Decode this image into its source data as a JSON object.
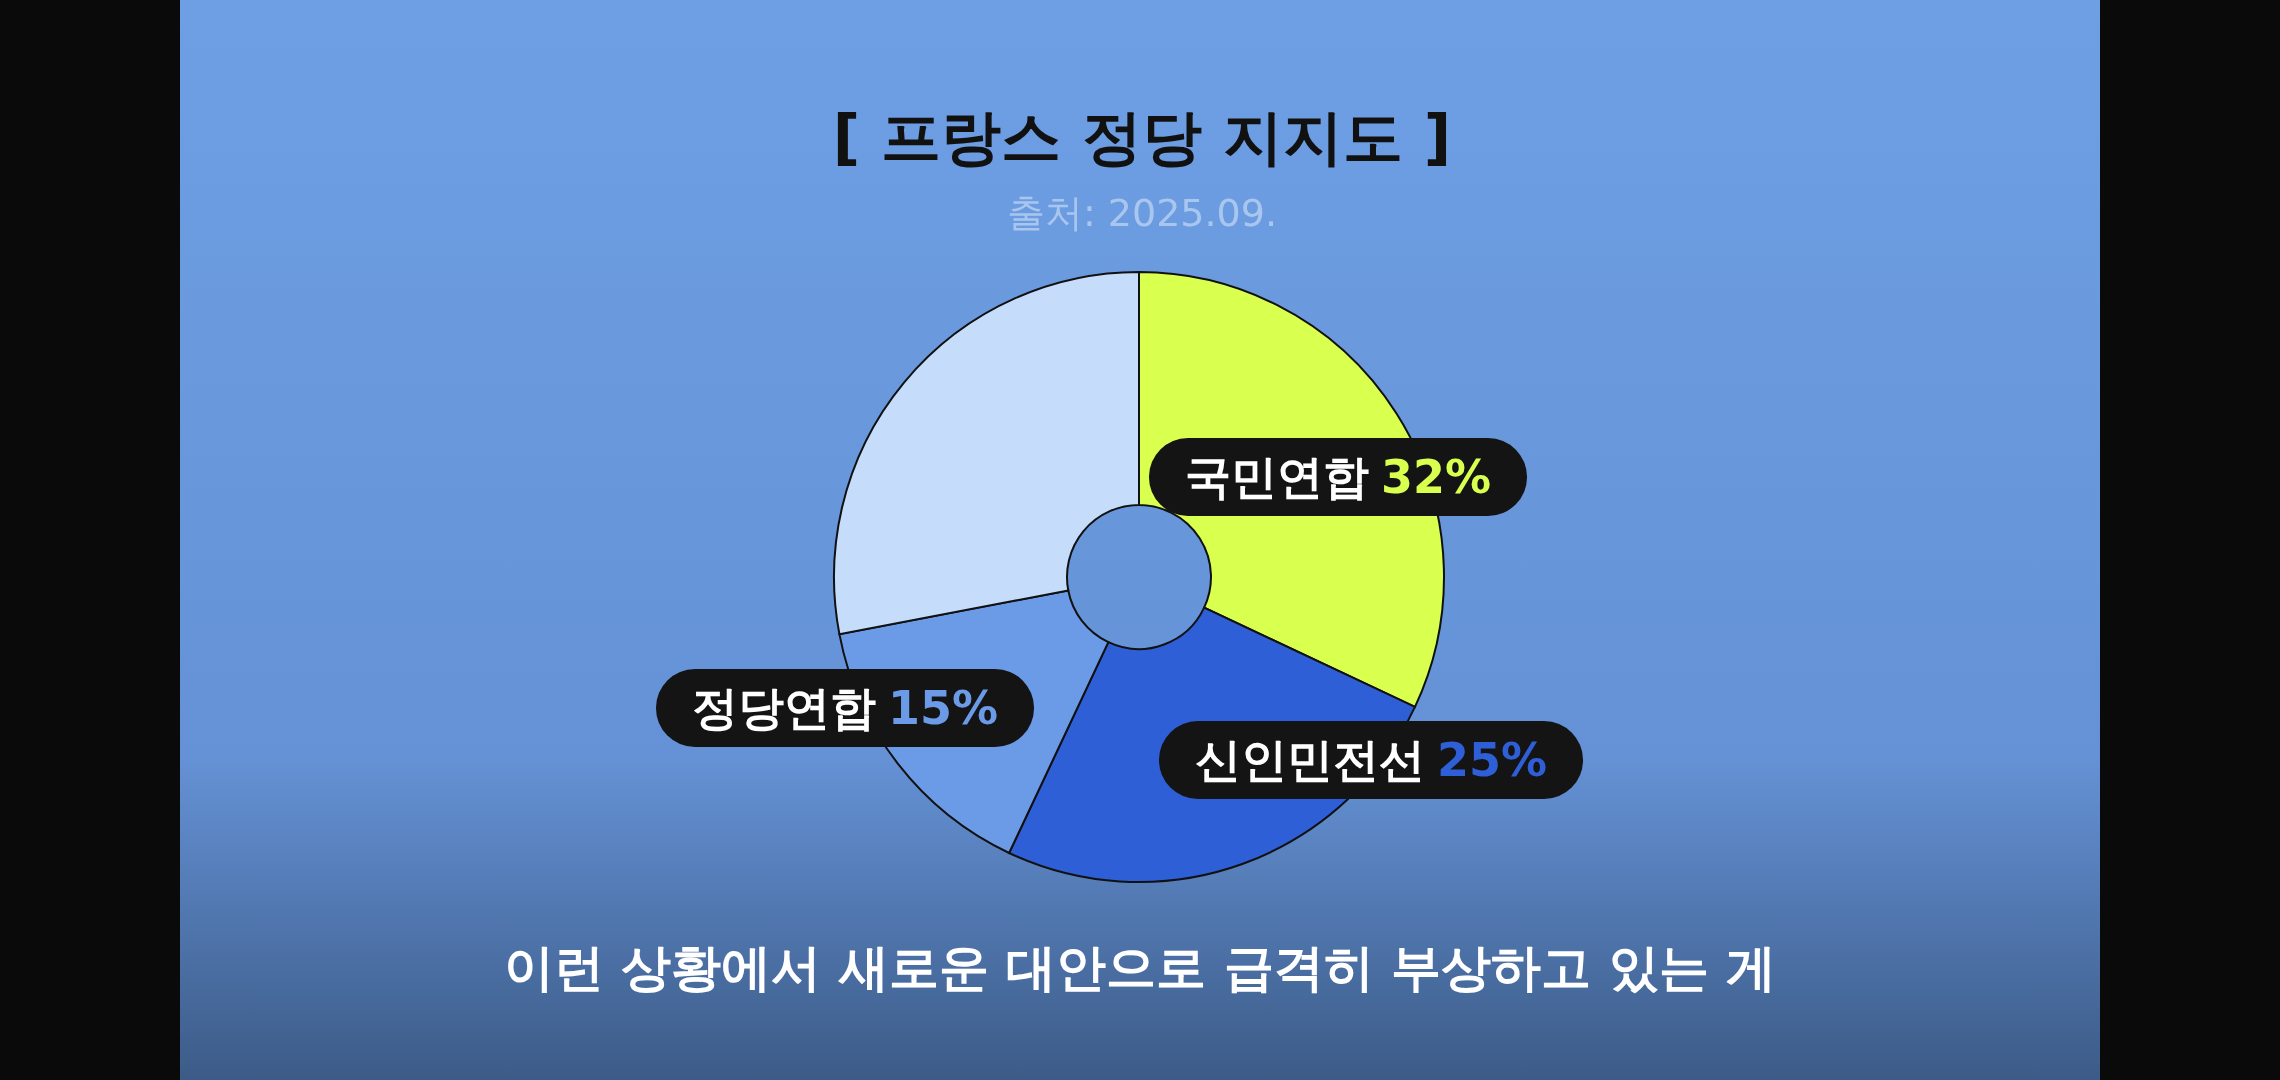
{
  "chart_data": {
    "type": "donut",
    "title": "[ 프랑스 정당 지지도 ]",
    "subtitle": "출처: 2025.09.",
    "categories": [
      "국민연합",
      "신인민전선",
      "정당연합",
      null
    ],
    "values": [
      32,
      25,
      15,
      28
    ],
    "colors": [
      "#d9ff4f",
      "#2f5fd6",
      "#6b9ae6",
      "#c6dcfb"
    ],
    "value_labels": [
      "32%",
      "25%",
      "15%",
      null
    ],
    "annotations": [
      "이런 상황에서 새로운 대안으로 급격히 부상하고 있는 게"
    ]
  }
}
